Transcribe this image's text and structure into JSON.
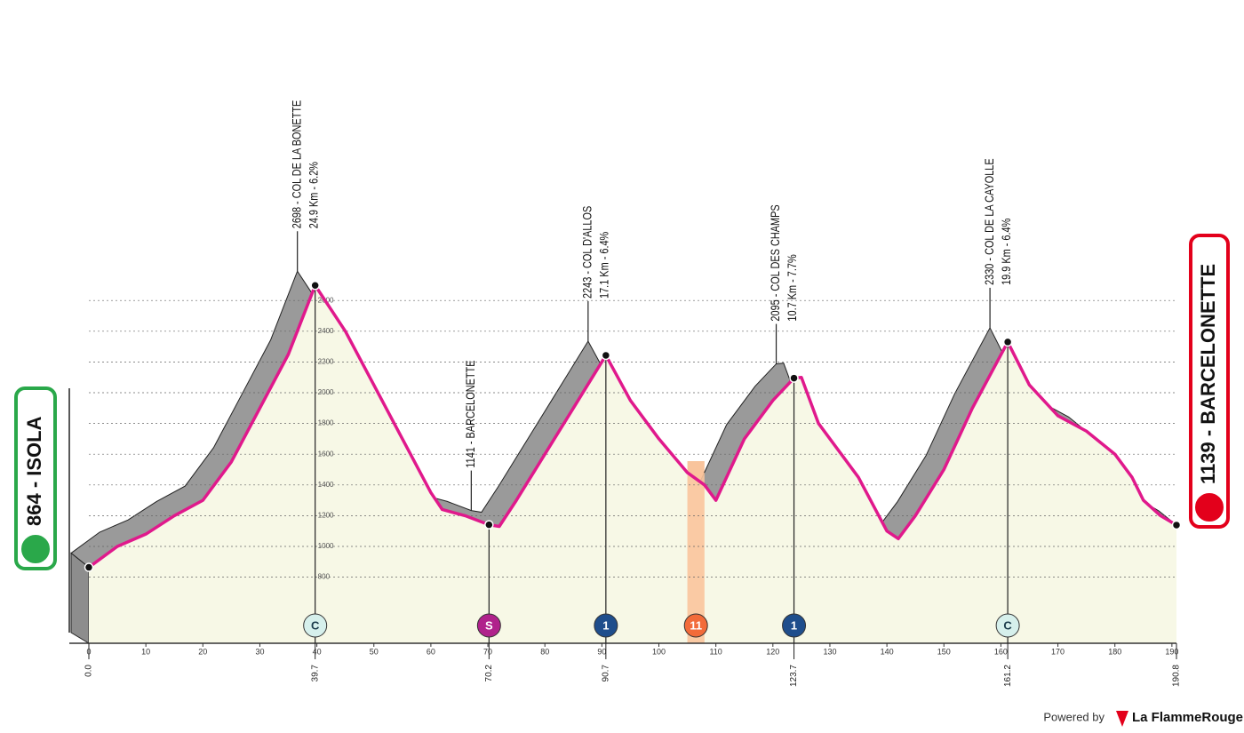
{
  "chart_data": {
    "type": "area",
    "x": [
      0,
      5,
      10,
      15,
      20,
      25,
      30,
      35,
      39.7,
      45,
      50,
      55,
      60,
      62,
      66,
      70.2,
      72,
      75,
      80,
      85,
      90.7,
      95,
      100,
      105,
      108,
      110,
      115,
      120,
      123.7,
      125,
      128,
      132,
      135,
      140,
      142,
      145,
      150,
      155,
      161.2,
      165,
      170,
      175,
      180,
      183,
      185,
      188,
      190.8
    ],
    "values": [
      864,
      1000,
      1080,
      1200,
      1300,
      1550,
      1900,
      2250,
      2698,
      2400,
      2050,
      1700,
      1350,
      1240,
      1200,
      1141,
      1130,
      1300,
      1600,
      1900,
      2243,
      1950,
      1700,
      1480,
      1400,
      1300,
      1700,
      1950,
      2095,
      2100,
      1800,
      1600,
      1450,
      1100,
      1050,
      1200,
      1500,
      1900,
      2330,
      2050,
      1850,
      1750,
      1600,
      1450,
      1300,
      1200,
      1139
    ],
    "color": "#e0198c",
    "fill": "#f7f8e6",
    "shadow_color": "#9a9a9a",
    "xlim": [
      0,
      190.8
    ],
    "ylim": [
      370,
      3000
    ],
    "xticks": [
      0,
      10,
      20,
      30,
      40,
      50,
      60,
      70,
      80,
      90,
      100,
      110,
      120,
      130,
      140,
      150,
      160,
      170,
      180,
      190
    ],
    "yticks": [
      800,
      1000,
      1200,
      1400,
      1600,
      1800,
      2000,
      2200,
      2400,
      2600
    ],
    "grid": true,
    "start": {
      "label": "864 - ISOLA",
      "color": "#2aa84a"
    },
    "finish": {
      "label": "1139 - BARCELONETTE",
      "color": "#e3001b"
    },
    "km_markers": [
      {
        "value": 0,
        "label": "0.0"
      },
      39.7,
      70.2,
      90.7,
      123.7,
      161.2,
      190.8
    ],
    "climbs": [
      {
        "km": 39.7,
        "elevation": 2698,
        "lines": [
          "2698 - COL DE LA BONETTE",
          "24.9 Km - 6.2%"
        ]
      },
      {
        "km": 70.2,
        "elevation": 1141,
        "lines": [
          "1141 - BARCELONETTE"
        ]
      },
      {
        "km": 90.7,
        "elevation": 2243,
        "lines": [
          "2243 - COL D'ALLOS",
          "17.1 Km - 6.4%"
        ]
      },
      {
        "km": 123.7,
        "elevation": 2095,
        "lines": [
          "2095 - COL DES CHAMPS",
          "10.7 Km - 7.7%"
        ]
      },
      {
        "km": 161.2,
        "elevation": 2330,
        "lines": [
          "2330 - COL DE LA CAYOLLE",
          "19.9 Km - 6.4%"
        ]
      }
    ],
    "icons": [
      {
        "km": 39.7,
        "label": "C",
        "color": "#d6f0ec",
        "text_color": "#1a3a4a"
      },
      {
        "km": 70.2,
        "label": "S",
        "color": "#b0228c",
        "text_color": "#ffffff"
      },
      {
        "km": 90.7,
        "label": "1",
        "color": "#1f4e8c",
        "text_color": "#ffffff"
      },
      {
        "km": 106.5,
        "label": "11",
        "color": "#f26b3a",
        "text_color": "#ffffff"
      },
      {
        "km": 123.7,
        "label": "1",
        "color": "#1f4e8c",
        "text_color": "#ffffff"
      },
      {
        "km": 161.2,
        "label": "C",
        "color": "#d6f0ec",
        "text_color": "#1a3a4a"
      }
    ],
    "feed_zone": {
      "range": [
        105,
        108
      ],
      "color": "#f9c49c"
    }
  },
  "footer": {
    "powered": "Powered by",
    "brand": "La FlammeRouge"
  }
}
